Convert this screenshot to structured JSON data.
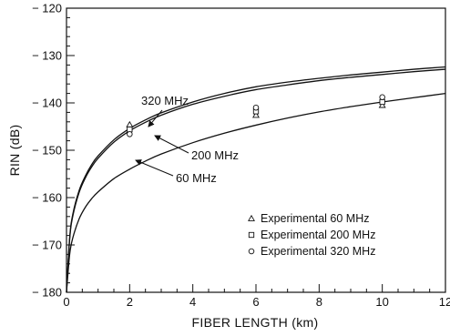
{
  "chart_data": {
    "type": "line",
    "xlabel": "FIBER LENGTH (km)",
    "ylabel": "RIN (dB)",
    "xlim": [
      0,
      12
    ],
    "ylim": [
      -180,
      -120
    ],
    "xticks": [
      "0",
      "2",
      "4",
      "6",
      "8",
      "10",
      "12"
    ],
    "yticks": [
      "− 120",
      "− 130",
      "− 140",
      "− 150",
      "− 160",
      "− 170",
      "− 180"
    ],
    "grid": false,
    "legend_position": "lower-right",
    "series": [
      {
        "name": "320 MHz",
        "x": [
          0,
          0.1,
          0.2,
          0.4,
          0.6,
          0.8,
          1,
          1.5,
          2,
          2.5,
          3,
          4,
          5,
          6,
          7,
          8,
          9,
          10,
          11,
          12
        ],
        "y": [
          -180,
          -168.5,
          -163.5,
          -158.5,
          -155.4,
          -153.0,
          -151.2,
          -147.8,
          -145.4,
          -143.6,
          -142.1,
          -139.8,
          -138.0,
          -136.6,
          -135.6,
          -134.8,
          -134.1,
          -133.5,
          -132.9,
          -132.4
        ]
      },
      {
        "name": "200 MHz",
        "x": [
          0,
          0.1,
          0.2,
          0.4,
          0.6,
          0.8,
          1,
          1.5,
          2,
          2.5,
          3,
          4,
          5,
          6,
          7,
          8,
          9,
          10,
          11,
          12
        ],
        "y": [
          -180,
          -168.8,
          -163.9,
          -158.9,
          -155.8,
          -153.5,
          -151.7,
          -148.3,
          -145.9,
          -144.1,
          -142.6,
          -140.3,
          -138.6,
          -137.2,
          -136.2,
          -135.3,
          -134.6,
          -134.0,
          -133.4,
          -132.9
        ]
      },
      {
        "name": "60 MHz",
        "x": [
          0,
          0.1,
          0.2,
          0.4,
          0.6,
          0.8,
          1,
          1.5,
          2,
          2.5,
          3,
          4,
          5,
          6,
          7,
          8,
          9,
          10,
          11,
          12
        ],
        "y": [
          -180,
          -172.0,
          -168.5,
          -164.5,
          -162.0,
          -160.2,
          -158.8,
          -156.0,
          -154.0,
          -152.3,
          -150.8,
          -148.4,
          -146.4,
          -144.7,
          -143.2,
          -141.9,
          -140.8,
          -139.8,
          -138.9,
          -138.0
        ]
      }
    ],
    "curve_labels": [
      "320 MHz",
      "200 MHz",
      "60 MHz"
    ],
    "experimental": {
      "legend": [
        "Experimental 60 MHz",
        "Experimental 200 MHz",
        "Experimental 320 MHz"
      ],
      "markers": [
        "triangle",
        "square",
        "circle"
      ],
      "points": [
        {
          "series": 0,
          "x": 2,
          "y": -144.6
        },
        {
          "series": 1,
          "x": 2,
          "y": -145.6
        },
        {
          "series": 2,
          "x": 2,
          "y": -146.6
        },
        {
          "series": 0,
          "x": 6,
          "y": -142.6
        },
        {
          "series": 1,
          "x": 6,
          "y": -141.8
        },
        {
          "series": 2,
          "x": 6,
          "y": -141.0
        },
        {
          "series": 0,
          "x": 10,
          "y": -140.5
        },
        {
          "series": 1,
          "x": 10,
          "y": -139.8
        },
        {
          "series": 2,
          "x": 10,
          "y": -138.8
        }
      ]
    }
  }
}
